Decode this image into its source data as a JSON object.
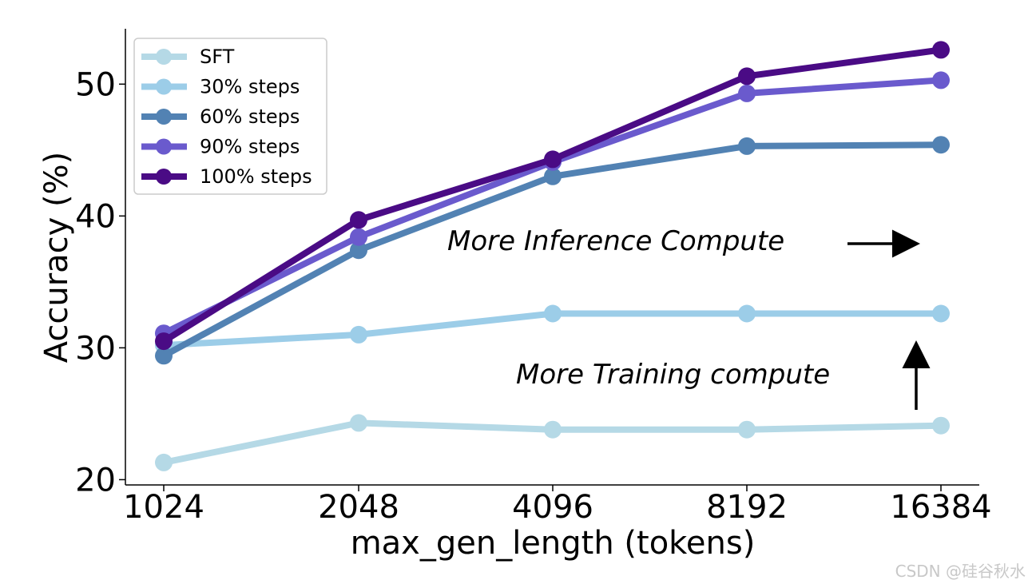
{
  "chart_data": {
    "type": "line",
    "title": "",
    "xlabel": "max_gen_length (tokens)",
    "ylabel": "Accuracy (%)",
    "categories": [
      "1024",
      "2048",
      "4096",
      "8192",
      "16384"
    ],
    "ylim": [
      19.6,
      54.2
    ],
    "yticks": [
      20,
      30,
      40,
      50
    ],
    "series": [
      {
        "name": "SFT",
        "color": "#b5d9e6",
        "values": [
          21.3,
          24.3,
          23.8,
          23.8,
          24.1
        ]
      },
      {
        "name": "30% steps",
        "color": "#9ccde8",
        "values": [
          30.2,
          31.0,
          32.6,
          32.6,
          32.6
        ]
      },
      {
        "name": "60% steps",
        "color": "#5282b3",
        "values": [
          29.4,
          37.4,
          43.0,
          45.3,
          45.4
        ]
      },
      {
        "name": "90% steps",
        "color": "#6a5acd",
        "values": [
          31.1,
          38.4,
          44.1,
          49.3,
          50.3
        ]
      },
      {
        "name": "100% steps",
        "color": "#4a0b85",
        "values": [
          30.5,
          39.7,
          44.3,
          50.6,
          52.6
        ]
      }
    ],
    "annotations": [
      {
        "text": "More Inference Compute",
        "arrow": "right"
      },
      {
        "text": "More Training compute",
        "arrow": "up"
      }
    ],
    "legend_position": "top-left",
    "grid": false
  },
  "watermark": "CSDN @硅谷秋水"
}
